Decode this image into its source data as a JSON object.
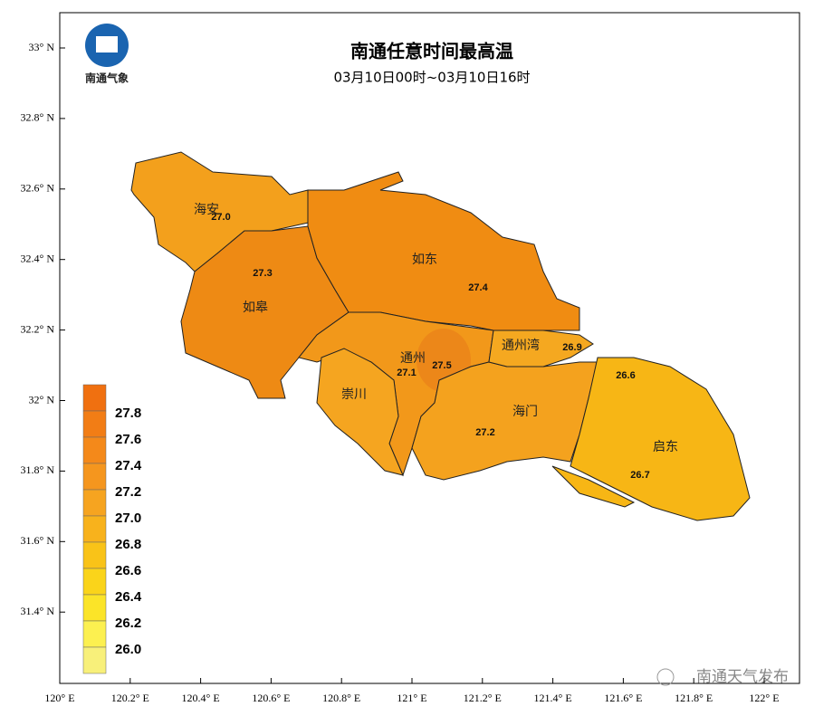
{
  "header": {
    "title": "南通任意时间最高温",
    "subtitle": "03月10日00时~03月10日16时"
  },
  "logo": {
    "text": "南通气象"
  },
  "axes": {
    "x_ticks": [
      "120° E",
      "120.2° E",
      "120.4° E",
      "120.6° E",
      "120.8° E",
      "121° E",
      "121.2° E",
      "121.4° E",
      "121.6° E",
      "121.8° E",
      "122° E"
    ],
    "y_ticks": [
      "33° N",
      "32.8° N",
      "32.6° N",
      "32.4° N",
      "32.2° N",
      "32° N",
      "31.8° N",
      "31.6° N",
      "31.4° N"
    ]
  },
  "map": {
    "regions": [
      "海安",
      "如皋",
      "如东",
      "通州",
      "通州湾",
      "崇川",
      "海门",
      "启东"
    ],
    "value_labels": [
      "27.0",
      "27.3",
      "27.4",
      "27.5",
      "27.1",
      "27.2",
      "26.9",
      "26.6",
      "26.7"
    ]
  },
  "legend": {
    "labels": [
      "27.8",
      "27.6",
      "27.4",
      "27.2",
      "27.0",
      "26.8",
      "26.6",
      "26.4",
      "26.2",
      "26.0"
    ]
  },
  "watermark": {
    "text": "南通天气发布"
  }
}
